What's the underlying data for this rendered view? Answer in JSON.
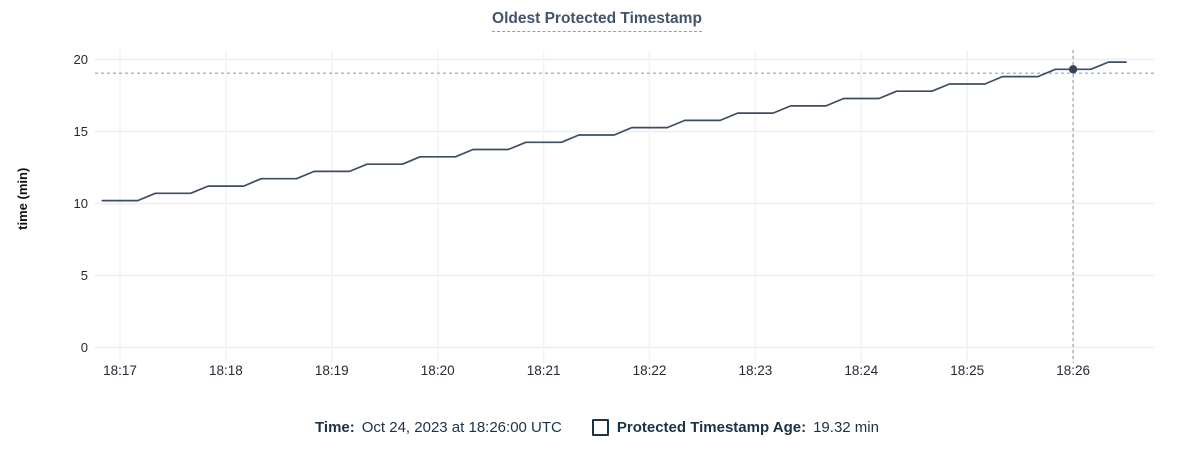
{
  "title": "Oldest Protected Timestamp",
  "tooltip": {
    "time_label": "Time:",
    "time_value": "Oct 24, 2023 at 18:26:00 UTC",
    "series_label": "Protected Timestamp Age:",
    "series_value": "19.32 min"
  },
  "colors": {
    "line": "#3e4c63",
    "dot": "#35445c",
    "grid_h": "#efefef",
    "grid_v": "#f2f2f2",
    "crosshair": "#8fa2b5",
    "axis_text": "#242a35",
    "title_text": "#43536b",
    "legend_text": "#1c3247"
  },
  "chart_data": {
    "type": "line",
    "title": "Oldest Protected Timestamp",
    "xlabel": "",
    "ylabel": "time (min)",
    "ylim": [
      0,
      20
    ],
    "yticks": [
      0,
      5,
      10,
      15,
      20
    ],
    "xticks": [
      "18:17",
      "18:18",
      "18:19",
      "18:20",
      "18:21",
      "18:22",
      "18:23",
      "18:24",
      "18:25",
      "18:26"
    ],
    "grid": true,
    "legend_position": "bottom",
    "series": [
      {
        "name": "Protected Timestamp Age",
        "unit": "min",
        "points": [
          [
            "18:16:50",
            10.2
          ],
          [
            "18:17:10",
            10.2
          ],
          [
            "18:17:20",
            10.71
          ],
          [
            "18:17:40",
            10.71
          ],
          [
            "18:17:50",
            11.21
          ],
          [
            "18:18:10",
            11.21
          ],
          [
            "18:18:20",
            11.72
          ],
          [
            "18:18:40",
            11.72
          ],
          [
            "18:18:50",
            12.23
          ],
          [
            "18:19:10",
            12.23
          ],
          [
            "18:19:20",
            12.73
          ],
          [
            "18:19:40",
            12.73
          ],
          [
            "18:19:50",
            13.24
          ],
          [
            "18:20:10",
            13.24
          ],
          [
            "18:20:20",
            13.75
          ],
          [
            "18:20:40",
            13.75
          ],
          [
            "18:20:50",
            14.25
          ],
          [
            "18:21:10",
            14.25
          ],
          [
            "18:21:20",
            14.76
          ],
          [
            "18:21:40",
            14.76
          ],
          [
            "18:21:50",
            15.27
          ],
          [
            "18:22:10",
            15.27
          ],
          [
            "18:22:20",
            15.77
          ],
          [
            "18:22:40",
            15.77
          ],
          [
            "18:22:50",
            16.28
          ],
          [
            "18:23:10",
            16.28
          ],
          [
            "18:23:20",
            16.78
          ],
          [
            "18:23:40",
            16.78
          ],
          [
            "18:23:50",
            17.29
          ],
          [
            "18:24:10",
            17.29
          ],
          [
            "18:24:20",
            17.8
          ],
          [
            "18:24:40",
            17.8
          ],
          [
            "18:24:50",
            18.3
          ],
          [
            "18:25:10",
            18.3
          ],
          [
            "18:25:20",
            18.81
          ],
          [
            "18:25:40",
            18.81
          ],
          [
            "18:25:50",
            19.32
          ],
          [
            "18:26:10",
            19.32
          ],
          [
            "18:26:20",
            19.82
          ],
          [
            "18:26:30",
            19.82
          ]
        ]
      }
    ],
    "hover": {
      "time": "18:26:00",
      "value": 19.32,
      "crosshair_y_value": 19.05
    }
  }
}
